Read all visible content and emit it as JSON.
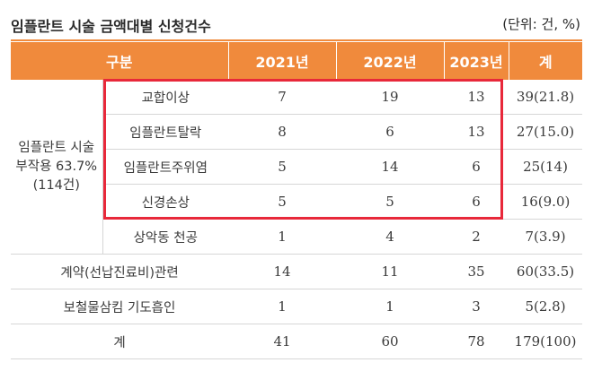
{
  "title": "임플란트 시술 금액대별 신청건수",
  "unit": "(단위: 건, %)",
  "header": [
    "구분",
    "2021년",
    "2022년",
    "2023년",
    "계"
  ],
  "group_label": "임플란트 시술 부작용 63.7%(114건)",
  "group_rows": [
    {
      "label": "교합이상",
      "y2021": "7",
      "y2022": "19",
      "y2023": "13",
      "total": "39(21.8)"
    },
    {
      "label": "임플란트탈락",
      "y2021": "8",
      "y2022": "6",
      "y2023": "13",
      "total": "27(15.0)"
    },
    {
      "label": "임플란트주위염",
      "y2021": "5",
      "y2022": "14",
      "y2023": "6",
      "total": "25(14)"
    },
    {
      "label": "신경손상",
      "y2021": "5",
      "y2022": "5",
      "y2023": "6",
      "total": "16(9.0)"
    },
    {
      "label": "상악동 천공",
      "y2021": "1",
      "y2022": "4",
      "y2023": "2",
      "total": "7(3.9)"
    }
  ],
  "rows": [
    {
      "label": "계약(선납진료비)관련",
      "y2021": "14",
      "y2022": "11",
      "y2023": "35",
      "total": "60(33.5)"
    },
    {
      "label": "보철물삼킴 기도흡인",
      "y2021": "1",
      "y2022": "1",
      "y2023": "3",
      "total": "5(2.8)"
    },
    {
      "label": "계",
      "y2021": "41",
      "y2022": "60",
      "y2023": "78",
      "total": "179(100)"
    }
  ],
  "colors": {
    "header_bg": "#f08a3c",
    "highlight": "#e8283a",
    "rule": "#d6d6d6"
  }
}
